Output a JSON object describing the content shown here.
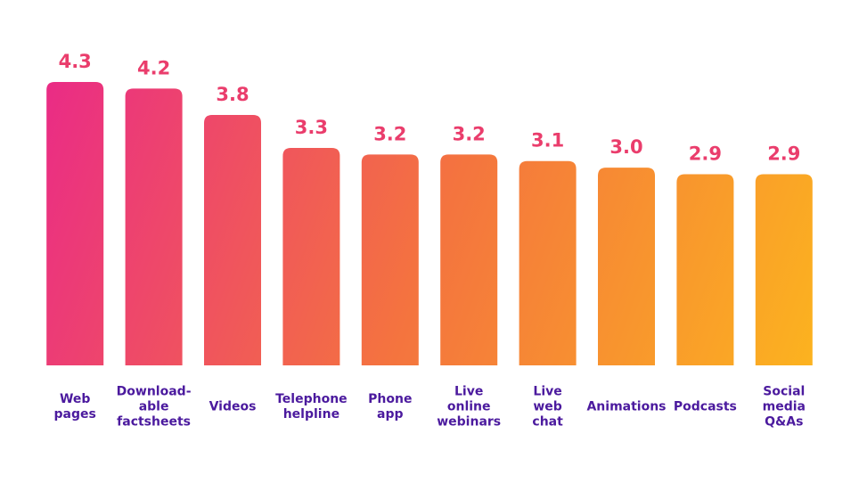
{
  "chart_data": {
    "type": "bar",
    "categories": [
      "Web\npages",
      "Download-\nable\nfactsheets",
      "Videos",
      "Telephone\nhelpline",
      "Phone\napp",
      "Live\nonline\nwebinars",
      "Live\nweb\nchat",
      "Animations",
      "Podcasts",
      "Social\nmedia\nQ&As"
    ],
    "values": [
      4.3,
      4.2,
      3.8,
      3.3,
      3.2,
      3.2,
      3.1,
      3.0,
      2.9,
      2.9
    ],
    "value_labels": [
      "4.3",
      "4.2",
      "3.8",
      "3.3",
      "3.2",
      "3.2",
      "3.1",
      "3.0",
      "2.9",
      "2.9"
    ],
    "colors": [
      "#ea2b86",
      "#f4733f",
      "#fcb51e"
    ],
    "ylim": [
      0,
      4.3
    ]
  }
}
